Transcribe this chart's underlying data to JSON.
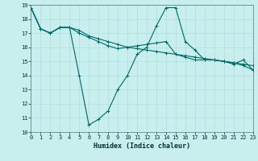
{
  "xlabel": "Humidex (Indice chaleur)",
  "xlim": [
    0,
    23
  ],
  "ylim": [
    10,
    19
  ],
  "background_color": "#c8eeee",
  "grid_color": "#aedddd",
  "line_color": "#006868",
  "line1": {
    "x": [
      0,
      1,
      2,
      3,
      4,
      5,
      6,
      7,
      8,
      9,
      10,
      11,
      12,
      13,
      14,
      15,
      16,
      17,
      18,
      19,
      20,
      21,
      22,
      23
    ],
    "y": [
      18.8,
      17.3,
      17.0,
      17.4,
      17.4,
      14.0,
      10.5,
      10.9,
      11.5,
      13.0,
      14.0,
      15.5,
      16.0,
      17.5,
      18.8,
      18.8,
      16.4,
      15.8,
      15.1,
      15.1,
      15.0,
      14.8,
      15.1,
      14.4
    ]
  },
  "line2": {
    "x": [
      0,
      1,
      2,
      3,
      4,
      5,
      6,
      7,
      8,
      9,
      10,
      11,
      12,
      13,
      14,
      15,
      16,
      17,
      18,
      19,
      20,
      21,
      22,
      23
    ],
    "y": [
      18.8,
      17.3,
      17.0,
      17.4,
      17.4,
      17.2,
      16.8,
      16.6,
      16.4,
      16.2,
      16.0,
      15.9,
      15.8,
      15.7,
      15.6,
      15.5,
      15.4,
      15.3,
      15.2,
      15.1,
      15.0,
      14.9,
      14.8,
      14.7
    ]
  },
  "line3": {
    "x": [
      0,
      1,
      2,
      3,
      4,
      5,
      6,
      7,
      8,
      9,
      10,
      11,
      12,
      13,
      14,
      15,
      16,
      17,
      18,
      19,
      20,
      21,
      22,
      23
    ],
    "y": [
      18.8,
      17.3,
      17.0,
      17.4,
      17.4,
      17.0,
      16.7,
      16.4,
      16.1,
      15.9,
      16.0,
      16.1,
      16.2,
      16.3,
      16.4,
      15.5,
      15.3,
      15.1,
      15.1,
      15.1,
      15.0,
      14.9,
      14.7,
      14.4
    ]
  },
  "yticks": [
    10,
    11,
    12,
    13,
    14,
    15,
    16,
    17,
    18,
    19
  ],
  "xticks": [
    0,
    1,
    2,
    3,
    4,
    5,
    6,
    7,
    8,
    9,
    10,
    11,
    12,
    13,
    14,
    15,
    16,
    17,
    18,
    19,
    20,
    21,
    22,
    23
  ],
  "tick_fontsize": 5.0,
  "xlabel_fontsize": 6.0,
  "linewidth": 0.8,
  "marker_size": 2.5,
  "marker_ew": 0.7
}
